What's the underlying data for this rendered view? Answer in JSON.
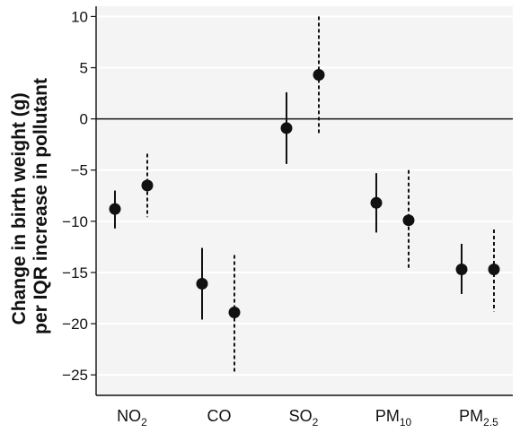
{
  "chart_data": {
    "type": "scatter",
    "ylabel_line1": "Change in birth weight (g)",
    "ylabel_line2": "per IQR increase in pollutant",
    "xlabel": "",
    "ylim": [
      -27,
      11
    ],
    "yticks": [
      10,
      5,
      0,
      -5,
      -10,
      -15,
      -20,
      -25
    ],
    "ytick_labels": [
      "10",
      "5",
      "0",
      "−5",
      "−10",
      "−15",
      "−20",
      "−25"
    ],
    "grid": true,
    "reference_line": 0,
    "categories": [
      {
        "base": "NO",
        "sub": "2"
      },
      {
        "base": "CO",
        "sub": ""
      },
      {
        "base": "SO",
        "sub": "2"
      },
      {
        "base": "PM",
        "sub": "10"
      },
      {
        "base": "PM",
        "sub": "2.5"
      }
    ],
    "series": [
      {
        "line_style": "solid",
        "points": [
          {
            "estimate": -8.8,
            "lower": -10.7,
            "upper": -7.0
          },
          {
            "estimate": -16.1,
            "lower": -19.6,
            "upper": -12.6
          },
          {
            "estimate": -0.9,
            "lower": -4.4,
            "upper": 2.6
          },
          {
            "estimate": -8.2,
            "lower": -11.1,
            "upper": -5.3
          },
          {
            "estimate": -14.7,
            "lower": -17.1,
            "upper": -12.2
          }
        ]
      },
      {
        "line_style": "dashed",
        "points": [
          {
            "estimate": -6.5,
            "lower": -9.6,
            "upper": -3.4
          },
          {
            "estimate": -18.9,
            "lower": -24.8,
            "upper": -13.3
          },
          {
            "estimate": 4.3,
            "lower": -1.6,
            "upper": 10.0
          },
          {
            "estimate": -9.9,
            "lower": -14.8,
            "upper": -5.0
          },
          {
            "estimate": -14.7,
            "lower": -18.8,
            "upper": -10.8
          }
        ]
      }
    ]
  }
}
